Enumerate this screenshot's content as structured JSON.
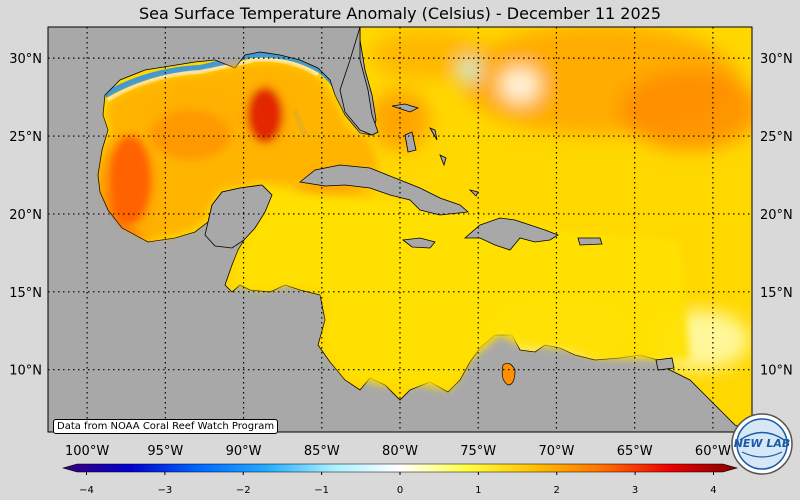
{
  "title": "Sea Surface Temperature Anomaly (Celsius) - December 11 2025",
  "credit": "Data from NOAA Coral Reef Watch Program",
  "map": {
    "lon_range": [
      -102.5,
      -57.5
    ],
    "lat_range": [
      6,
      32
    ],
    "lon_ticks": [
      {
        "value": -100,
        "label": "100°W"
      },
      {
        "value": -95,
        "label": "95°W"
      },
      {
        "value": -90,
        "label": "90°W"
      },
      {
        "value": -85,
        "label": "85°W"
      },
      {
        "value": -80,
        "label": "80°W"
      },
      {
        "value": -75,
        "label": "75°W"
      },
      {
        "value": -70,
        "label": "70°W"
      },
      {
        "value": -65,
        "label": "65°W"
      },
      {
        "value": -60,
        "label": "60°W"
      }
    ],
    "lat_ticks": [
      {
        "value": 30,
        "label": "30°N"
      },
      {
        "value": 25,
        "label": "25°N"
      },
      {
        "value": 20,
        "label": "20°N"
      },
      {
        "value": 15,
        "label": "15°N"
      },
      {
        "value": 10,
        "label": "10°N"
      }
    ],
    "grid": true
  },
  "colorbar": {
    "ticks": [
      {
        "value": -4,
        "label": "−4"
      },
      {
        "value": -3,
        "label": "−3"
      },
      {
        "value": -2,
        "label": "−2"
      },
      {
        "value": -1,
        "label": "−1"
      },
      {
        "value": 0,
        "label": "0"
      },
      {
        "value": 1,
        "label": "1"
      },
      {
        "value": 2,
        "label": "2"
      },
      {
        "value": 3,
        "label": "3"
      },
      {
        "value": 4,
        "label": "4"
      }
    ],
    "range": [
      -4.3,
      4.3
    ],
    "colors": [
      "#3a0078",
      "#0000d0",
      "#0066ff",
      "#22aaff",
      "#a8f0ff",
      "#ffffff",
      "#ffff40",
      "#ffc000",
      "#ff7000",
      "#ee0000",
      "#800000"
    ]
  },
  "logo": {
    "text": "NEW LAB"
  },
  "colors": {
    "land": "#a8a8a8",
    "background": "#d9d9d9",
    "ocean_warm": "#ffd000"
  }
}
